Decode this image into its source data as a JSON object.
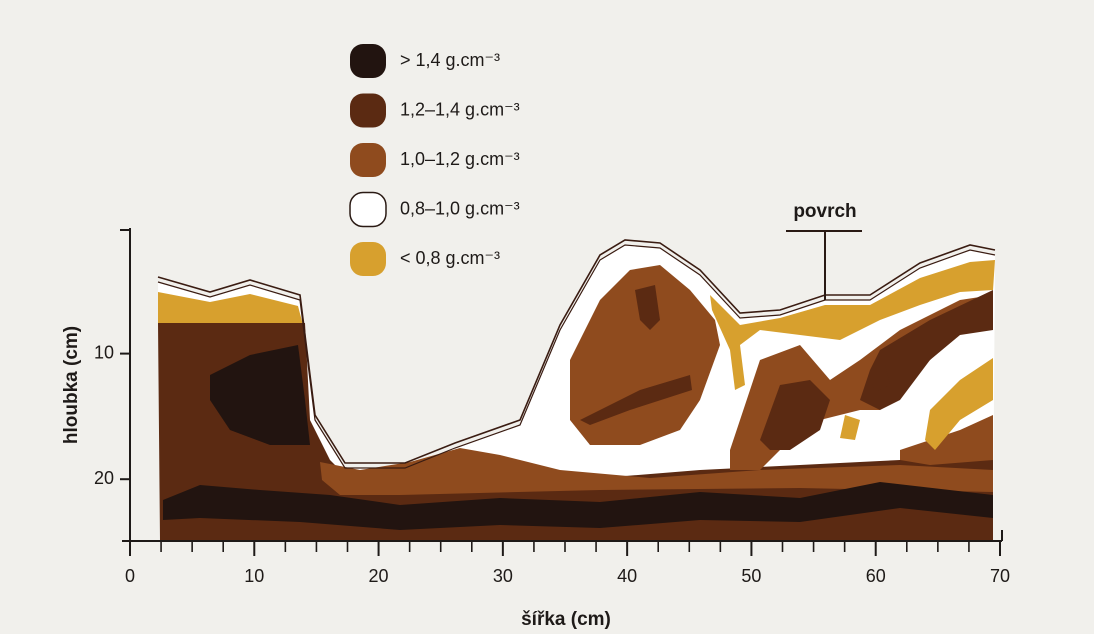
{
  "chart_data": {
    "type": "profile",
    "annotation": "povrch",
    "x_label": "šířka (cm)",
    "y_label": "hloubka (cm)",
    "xlim": [
      0,
      70
    ],
    "xticks": [
      0,
      10,
      20,
      30,
      40,
      50,
      60,
      70
    ],
    "xminor_ticks": [
      2.5,
      5,
      7.5,
      12.5,
      15,
      17.5,
      22.5,
      25,
      27.5,
      32.5,
      35,
      37.5,
      42.5,
      45,
      47.5,
      52.5,
      55,
      57.5,
      62.5,
      65,
      67.5
    ],
    "ylim": [
      0,
      25
    ],
    "yticks": [
      10,
      20
    ],
    "y_inverted": true,
    "legend": [
      {
        "name": "> 1,4 g.cm⁻³",
        "color": "#221410"
      },
      {
        "name": "1,2–1,4 g.cm⁻³",
        "color": "#5b2a12"
      },
      {
        "name": "1,0–1,2 g.cm⁻³",
        "color": "#8f4b1e"
      },
      {
        "name": "0,8–1,0 g.cm⁻³",
        "color": "#ffffff"
      },
      {
        "name": "< 0,8 g.cm⁻³",
        "color": "#d7a02e"
      }
    ]
  }
}
